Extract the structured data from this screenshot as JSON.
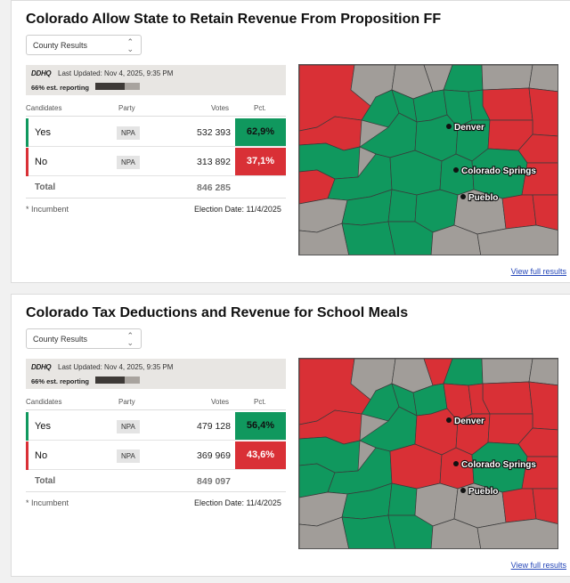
{
  "colors": {
    "yes": "#10985e",
    "no": "#d93036",
    "gray": "#a19d99",
    "link": "#2446b8"
  },
  "races": [
    {
      "title": "Colorado Allow State to Retain Revenue From Proposition FF",
      "county_select": "County Results",
      "source_logo": "DDHQ",
      "last_updated": "Last Updated: Nov 4, 2025, 9:35 PM",
      "reporting": "66% est. reporting",
      "reporting_fraction": 0.66,
      "headers": {
        "candidates": "Candidates",
        "party": "Party",
        "votes": "Votes",
        "pct": "Pct."
      },
      "rows": [
        {
          "name": "Yes",
          "party": "NPA",
          "votes": "532 393",
          "pct": "62,9%"
        },
        {
          "name": "No",
          "party": "NPA",
          "votes": "313 892",
          "pct": "37,1%"
        }
      ],
      "total_label": "Total",
      "total_votes": "846 285",
      "incumbent_note": "* Incumbent",
      "election_date": "Election Date: 11/4/2025",
      "cities": [
        "Denver",
        "Colorado Springs",
        "Pueblo"
      ],
      "view_full": "View full results"
    },
    {
      "title": "Colorado Tax Deductions and Revenue for School Meals",
      "county_select": "County Results",
      "source_logo": "DDHQ",
      "last_updated": "Last Updated: Nov 4, 2025, 9:35 PM",
      "reporting": "66% est. reporting",
      "reporting_fraction": 0.66,
      "headers": {
        "candidates": "Candidates",
        "party": "Party",
        "votes": "Votes",
        "pct": "Pct."
      },
      "rows": [
        {
          "name": "Yes",
          "party": "NPA",
          "votes": "479 128",
          "pct": "56,4%"
        },
        {
          "name": "No",
          "party": "NPA",
          "votes": "369 969",
          "pct": "43,6%"
        }
      ],
      "total_label": "Total",
      "total_votes": "849 097",
      "incumbent_note": "* Incumbent",
      "election_date": "Election Date: 11/4/2025",
      "cities": [
        "Denver",
        "Colorado Springs",
        "Pueblo"
      ],
      "view_full": "View full results"
    }
  ]
}
